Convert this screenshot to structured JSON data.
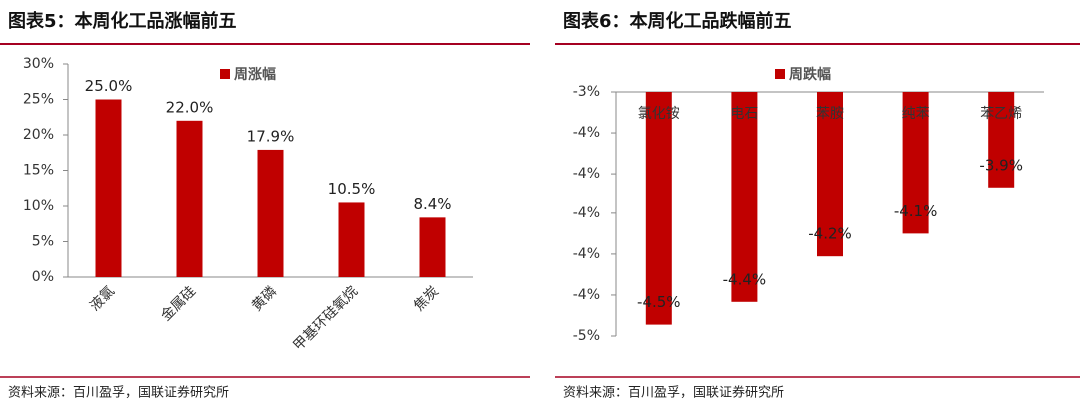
{
  "chart_data": [
    {
      "type": "bar",
      "title": "图表5：本周化工品涨幅前五",
      "legend": "周涨幅",
      "color": "#c00000",
      "categories": [
        "液氯",
        "金属硅",
        "黄磷",
        "甲基环硅氧烷",
        "焦炭"
      ],
      "values": [
        25.0,
        22.0,
        17.9,
        10.5,
        8.4
      ],
      "value_labels": [
        "25.0%",
        "22.0%",
        "17.9%",
        "10.5%",
        "8.4%"
      ],
      "ylim": [
        0,
        30
      ],
      "yticks": [
        {
          "value": 0,
          "label": "0%"
        },
        {
          "value": 5,
          "label": "5%"
        },
        {
          "value": 10,
          "label": "10%"
        },
        {
          "value": 15,
          "label": "15%"
        },
        {
          "value": 20,
          "label": "20%"
        },
        {
          "value": 25,
          "label": "25%"
        },
        {
          "value": 30,
          "label": "30%"
        }
      ],
      "source": "资料来源：百川盈孚，国联证券研究所"
    },
    {
      "type": "bar",
      "title": "图表6：本周化工品跌幅前五",
      "legend": "周跌幅",
      "color": "#c00000",
      "categories": [
        "氯化铵",
        "电石",
        "苯胺",
        "纯苯",
        "苯乙烯"
      ],
      "values": [
        -4.5,
        -4.4,
        -4.2,
        -4.1,
        -3.9
      ],
      "value_labels": [
        "-4.5%",
        "-4.4%",
        "-4.2%",
        "-4.1%",
        "-3.9%"
      ],
      "ylim": [
        -4.55,
        -3.48
      ],
      "yticks": [
        {
          "value": -3.48,
          "label": "-3%"
        },
        {
          "value": -3.66,
          "label": "-4%"
        },
        {
          "value": -3.84,
          "label": "-4%"
        },
        {
          "value": -4.01,
          "label": "-4%"
        },
        {
          "value": -4.19,
          "label": "-4%"
        },
        {
          "value": -4.37,
          "label": "-4%"
        },
        {
          "value": -4.55,
          "label": "-5%"
        }
      ],
      "source": "资料来源：百川盈孚，国联证券研究所"
    }
  ]
}
